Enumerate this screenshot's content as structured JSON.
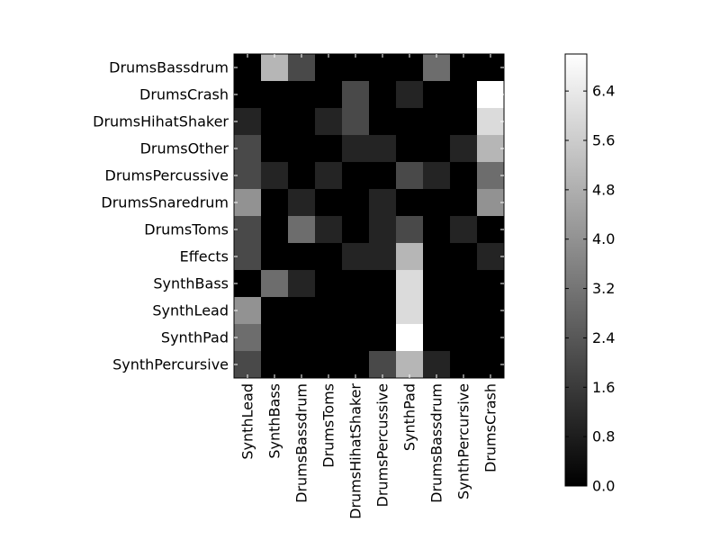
{
  "chart_data": {
    "type": "heatmap",
    "colormap": "gray",
    "colorbar": {
      "range": [
        0,
        7
      ],
      "ticks": [
        0.0,
        0.8,
        1.6,
        2.4,
        3.2,
        4.0,
        4.8,
        5.6,
        6.4
      ],
      "tick_labels": [
        "0.0",
        "0.8",
        "1.6",
        "2.4",
        "3.2",
        "4.0",
        "4.8",
        "5.6",
        "6.4"
      ]
    },
    "rows": [
      "DrumsBassdrum",
      "DrumsCrash",
      "DrumsHihatShaker",
      "DrumsOther",
      "DrumsPercussive",
      "DrumsSnaredrum",
      "DrumsToms",
      "Effects",
      "SynthBass",
      "SynthLead",
      "SynthPad",
      "SynthPercursive"
    ],
    "columns": [
      "SynthLead",
      "SynthBass",
      "DrumsBassdrum",
      "DrumsToms",
      "DrumsHihatShaker",
      "DrumsPercussive",
      "SynthPad",
      "DrumsBassdrum",
      "SynthPercursive",
      "DrumsCrash"
    ],
    "values": [
      [
        0,
        5,
        2,
        0,
        0,
        0,
        0,
        3,
        0,
        0
      ],
      [
        0,
        0,
        0,
        0,
        2,
        0,
        1,
        0,
        0,
        7
      ],
      [
        1,
        0,
        0,
        1,
        2,
        0,
        0,
        0,
        0,
        6
      ],
      [
        2,
        0,
        0,
        0,
        1,
        1,
        0,
        0,
        1,
        5
      ],
      [
        2,
        1,
        0,
        1,
        0,
        0,
        2,
        1,
        0,
        3
      ],
      [
        4,
        0,
        1,
        0,
        0,
        1,
        0,
        0,
        0,
        4
      ],
      [
        2,
        0,
        3,
        1,
        0,
        1,
        2,
        0,
        1,
        0
      ],
      [
        2,
        0,
        0,
        0,
        1,
        1,
        5,
        0,
        0,
        1
      ],
      [
        0,
        3,
        1,
        0,
        0,
        0,
        6,
        0,
        0,
        0
      ],
      [
        4,
        0,
        0,
        0,
        0,
        0,
        6,
        0,
        0,
        0
      ],
      [
        3,
        0,
        0,
        0,
        0,
        0,
        7,
        0,
        0,
        0
      ],
      [
        2,
        0,
        0,
        0,
        0,
        2,
        5,
        1,
        0,
        0
      ]
    ]
  }
}
